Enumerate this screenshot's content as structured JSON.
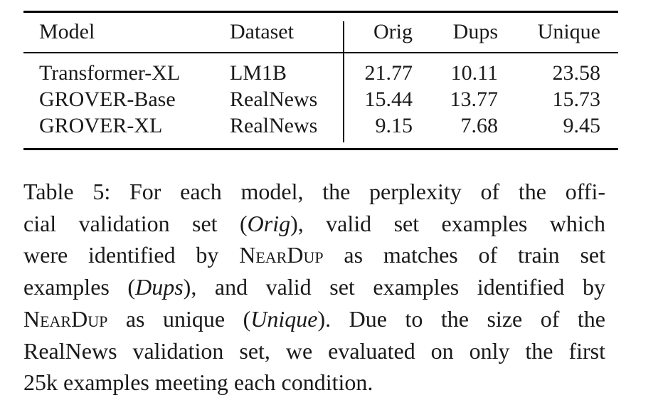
{
  "table": {
    "columns": [
      "Model",
      "Dataset",
      "Orig",
      "Dups",
      "Unique"
    ],
    "rows": [
      {
        "model": "Transformer-XL",
        "dataset": "LM1B",
        "orig": "21.77",
        "dups": "10.11",
        "unique": "23.58"
      },
      {
        "model": "GROVER-Base",
        "dataset": "RealNews",
        "orig": "15.44",
        "dups": "13.77",
        "unique": "15.73"
      },
      {
        "model": "GROVER-XL",
        "dataset": "RealNews",
        "orig": "9.15",
        "dups": "7.68",
        "unique": "9.45"
      }
    ]
  },
  "caption": {
    "l1": "Table 5: For each model, the perplexity of the offi-",
    "l2a": "cial validation set (",
    "l2b": "Orig",
    "l2c": "), valid set examples which",
    "l3a": "were identified by ",
    "l3b": "NearDup",
    "l3c": " as matches of train set",
    "l4a": "examples (",
    "l4b": "Dups",
    "l4c": "), and valid set examples identified by",
    "l5a": "NearDup",
    "l5b": " as unique (",
    "l5c": "Unique",
    "l5d": "). Due to the size of the",
    "l6": "RealNews validation set, we evaluated on only the first",
    "l7": "25k examples meeting each condition."
  }
}
